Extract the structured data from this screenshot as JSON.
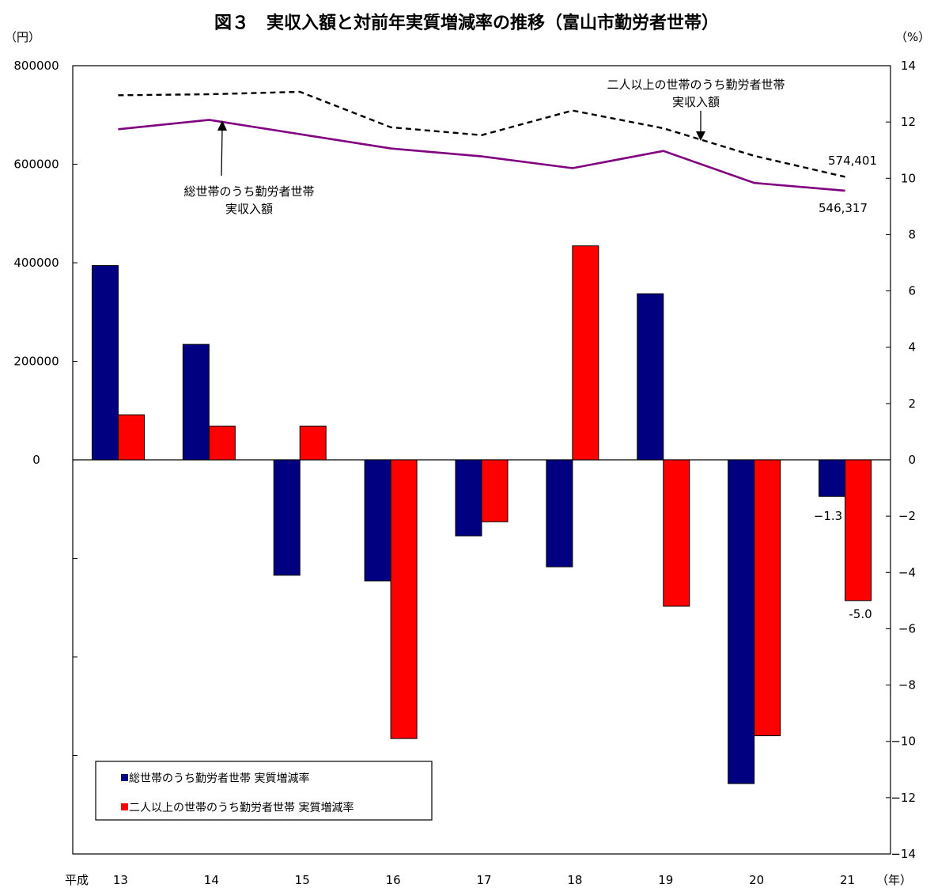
{
  "chart_data": {
    "type": "bar",
    "title": "図３　実収入額と対前年実質増減率の推移（富山市勤労者世帯）",
    "y_left_unit": "（円）",
    "y_right_unit": "（%）",
    "x_prefix": "平成",
    "x_unit": "（年）",
    "categories": [
      "13",
      "14",
      "15",
      "16",
      "17",
      "18",
      "19",
      "20",
      "21"
    ],
    "y_left_ticks": [
      "800000",
      "600000",
      "400000",
      "200000",
      "0"
    ],
    "y_left_range": [
      -800000,
      800000
    ],
    "y_right_ticks": [
      "14",
      "12",
      "10",
      "8",
      "6",
      "4",
      "2",
      "0",
      "−2",
      "−4",
      "−6",
      "−8",
      "−10",
      "−12",
      "−14"
    ],
    "y_right_range": [
      -14,
      14
    ],
    "grid": false,
    "legend_position": "bottom-left",
    "bar_series": [
      {
        "name": "総世帯のうち勤労者世帯  実質増減率",
        "color": "#000080",
        "values": [
          6.9,
          4.1,
          -4.1,
          -4.3,
          -2.7,
          -3.8,
          5.9,
          -11.5,
          -1.3
        ]
      },
      {
        "name": "二人以上の世帯のうち勤労者世帯  実質増減率",
        "color": "#ff0000",
        "values": [
          1.6,
          1.2,
          1.2,
          -9.9,
          -2.2,
          7.6,
          -5.2,
          -9.8,
          -5.0
        ]
      }
    ],
    "line_series": [
      {
        "name": "二人以上の世帯のうち勤労者世帯 実収入額",
        "color": "#000000",
        "style": "dashed",
        "values": [
          740000,
          742000,
          747000,
          675000,
          659000,
          709000,
          673000,
          617000,
          574401
        ]
      },
      {
        "name": "総世帯のうち勤労者世帯 実収入額",
        "color": "#800080",
        "style": "solid",
        "values": [
          671000,
          690000,
          661000,
          632000,
          616000,
          592000,
          627000,
          562000,
          546317
        ]
      }
    ],
    "annotations": {
      "line_dashed_label_1": "二人以上の世帯のうち勤労者世帯",
      "line_dashed_label_2": "実収入額",
      "line_solid_label_1": "総世帯のうち勤労者世帯",
      "line_solid_label_2": "実収入額",
      "dashed_end_value": "574,401",
      "solid_end_value": "546,317",
      "bar_blue_last_label": "−1.3",
      "bar_red_last_label": "-5.0"
    }
  }
}
